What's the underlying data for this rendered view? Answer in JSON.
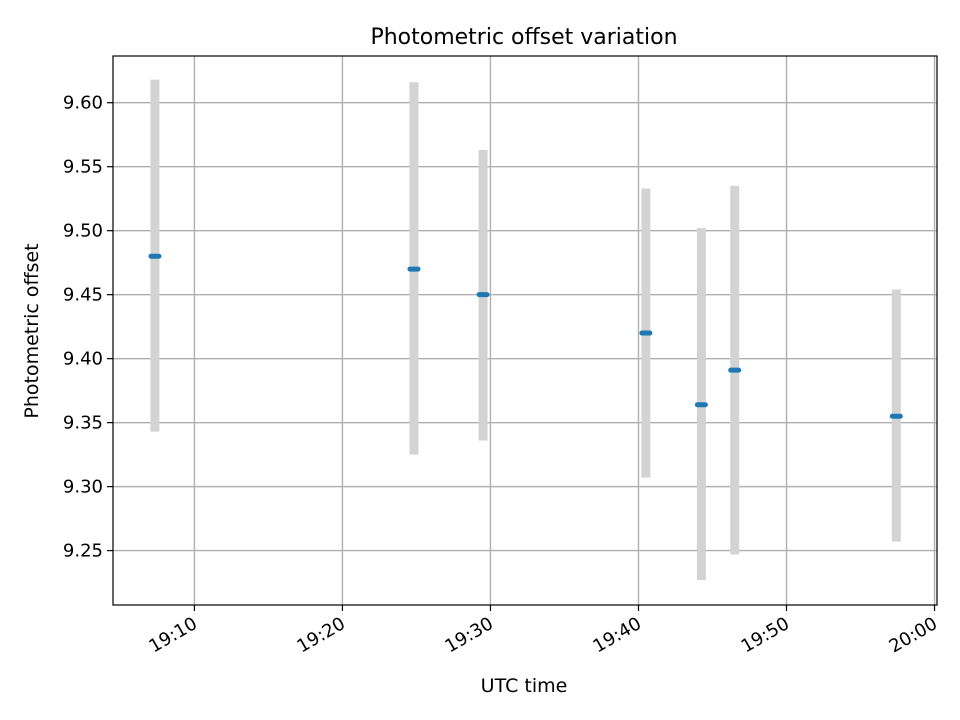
{
  "chart_data": {
    "type": "scatter",
    "title": "Photometric offset variation",
    "xlabel": "UTC time",
    "ylabel": "Photometric offset",
    "x_is_time": true,
    "xlim": [
      "19:04:30",
      "20:00:10"
    ],
    "ylim": [
      9.2075,
      9.6365
    ],
    "x_ticks": [
      "19:10",
      "19:20",
      "19:30",
      "19:40",
      "19:50",
      "20:00"
    ],
    "y_ticks": [
      9.25,
      9.3,
      9.35,
      9.4,
      9.45,
      9.5,
      9.55,
      9.6
    ],
    "y_tick_labels": [
      "9.25",
      "9.30",
      "9.35",
      "9.40",
      "9.45",
      "9.50",
      "9.55",
      "9.60"
    ],
    "grid": true,
    "point_color": "#1f77b4",
    "errorbar_color": "#d3d3d3",
    "points": [
      {
        "x": "19:07:20",
        "y": 9.48,
        "err_low": 9.343,
        "err_high": 9.618
      },
      {
        "x": "19:24:50",
        "y": 9.47,
        "err_low": 9.325,
        "err_high": 9.616
      },
      {
        "x": "19:29:30",
        "y": 9.45,
        "err_low": 9.336,
        "err_high": 9.563
      },
      {
        "x": "19:40:30",
        "y": 9.42,
        "err_low": 9.307,
        "err_high": 9.533
      },
      {
        "x": "19:44:15",
        "y": 9.364,
        "err_low": 9.227,
        "err_high": 9.502
      },
      {
        "x": "19:46:30",
        "y": 9.391,
        "err_low": 9.247,
        "err_high": 9.535
      },
      {
        "x": "19:57:25",
        "y": 9.355,
        "err_low": 9.257,
        "err_high": 9.454
      }
    ]
  }
}
